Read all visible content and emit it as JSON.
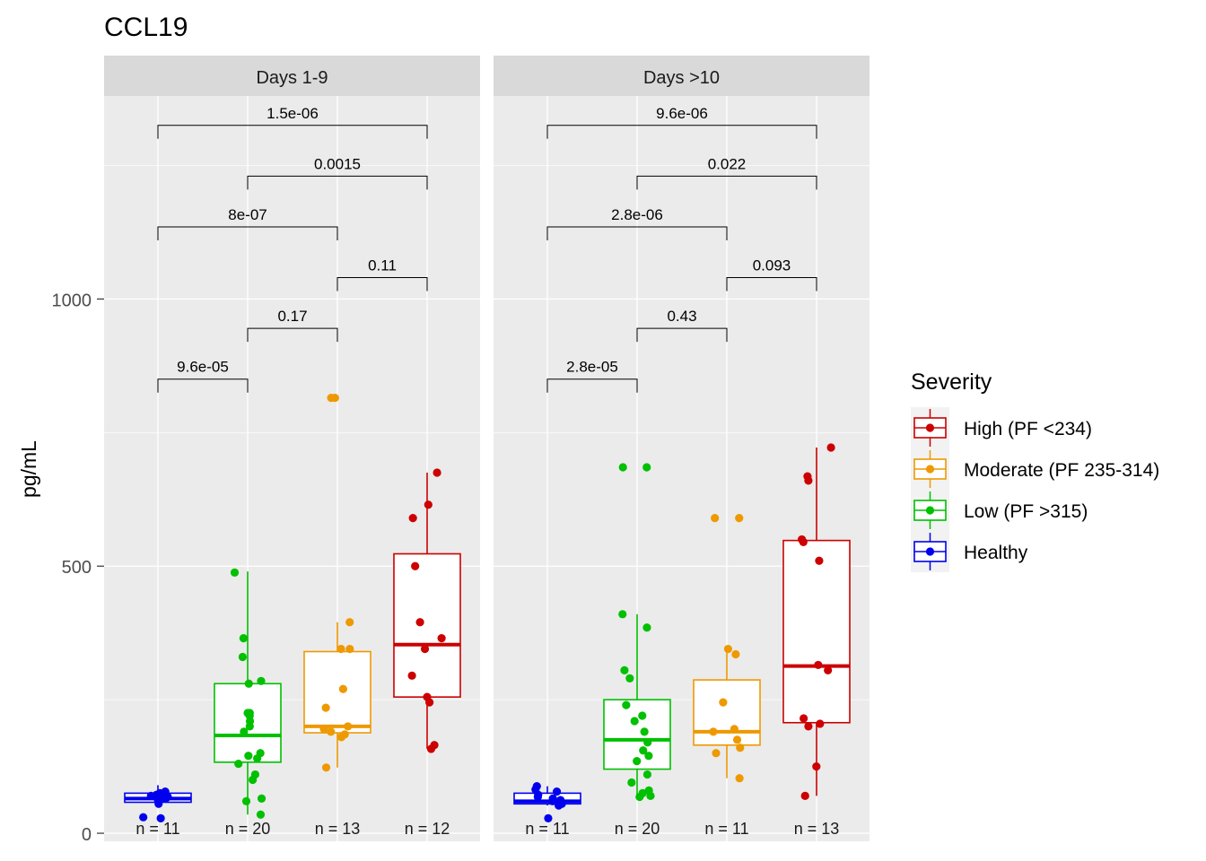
{
  "chart_data": {
    "type": "box",
    "title": "CCL19",
    "xlabel": "",
    "ylabel": "pg/mL",
    "ylim": [
      -15,
      1380
    ],
    "yticks": [
      0,
      500,
      1000
    ],
    "grid": true,
    "legend": {
      "title": "Severity",
      "position": "right",
      "entries": [
        {
          "name": "High (PF <234)",
          "color": "#CC0000"
        },
        {
          "name": "Moderate (PF 235-314)",
          "color": "#EE9900"
        },
        {
          "name": "Low (PF >315)",
          "color": "#00C000"
        },
        {
          "name": "Healthy",
          "color": "#0000EE"
        }
      ]
    },
    "panels": [
      {
        "label": "Days 1-9",
        "groups": [
          {
            "severity": "Healthy",
            "color": "#0000EE",
            "n_label": "n = 11",
            "box": {
              "q1": 58,
              "median": 65,
              "q3": 75,
              "whisker_low": 55,
              "whisker_high": 90
            },
            "points": [
              78,
              75,
              72,
              70,
              68,
              65,
              62,
              60,
              55,
              30,
              28
            ]
          },
          {
            "severity": "Low (PF >315)",
            "color": "#00C000",
            "n_label": "n = 20",
            "box": {
              "q1": 133,
              "median": 183,
              "q3": 280,
              "whisker_low": 35,
              "whisker_high": 490
            },
            "points": [
              488,
              365,
              330,
              285,
              280,
              225,
              220,
              210,
              200,
              190,
              150,
              140,
              130,
              110,
              100,
              65,
              60,
              35,
              225,
              145
            ]
          },
          {
            "severity": "Moderate (PF 235-314)",
            "color": "#EE9900",
            "n_label": "n = 13",
            "box": {
              "q1": 188,
              "median": 200,
              "q3": 340,
              "whisker_low": 123,
              "whisker_high": 395
            },
            "points": [
              815,
              815,
              395,
              345,
              345,
              270,
              235,
              200,
              195,
              190,
              185,
              180,
              123
            ]
          },
          {
            "severity": "High (PF <234)",
            "color": "#CC0000",
            "n_label": "n = 12",
            "box": {
              "q1": 255,
              "median": 353,
              "q3": 523,
              "whisker_low": 158,
              "whisker_high": 675
            },
            "points": [
              675,
              615,
              590,
              500,
              395,
              365,
              345,
              295,
              255,
              245,
              165,
              158
            ]
          }
        ],
        "comparisons": [
          {
            "from": 0,
            "to": 3,
            "label": "1.5e-06",
            "y": 1325
          },
          {
            "from": 1,
            "to": 3,
            "label": "0.0015",
            "y": 1230
          },
          {
            "from": 0,
            "to": 2,
            "label": "8e-07",
            "y": 1135
          },
          {
            "from": 2,
            "to": 3,
            "label": "0.11",
            "y": 1040
          },
          {
            "from": 1,
            "to": 2,
            "label": "0.17",
            "y": 945
          },
          {
            "from": 0,
            "to": 1,
            "label": "9.6e-05",
            "y": 850
          }
        ]
      },
      {
        "label": "Days >10",
        "groups": [
          {
            "severity": "Healthy",
            "color": "#0000EE",
            "n_label": "n = 11",
            "box": {
              "q1": 55,
              "median": 60,
              "q3": 75,
              "whisker_low": 52,
              "whisker_high": 88
            },
            "points": [
              88,
              82,
              78,
              72,
              68,
              65,
              62,
              60,
              55,
              52,
              28
            ]
          },
          {
            "severity": "Low (PF >315)",
            "color": "#00C000",
            "n_label": "n = 20",
            "box": {
              "q1": 120,
              "median": 175,
              "q3": 250,
              "whisker_low": 68,
              "whisker_high": 410
            },
            "points": [
              685,
              685,
              410,
              385,
              305,
              290,
              240,
              220,
              210,
              190,
              170,
              155,
              145,
              135,
              110,
              95,
              80,
              75,
              70,
              68
            ]
          },
          {
            "severity": "Moderate (PF 235-314)",
            "color": "#EE9900",
            "n_label": "n = 11",
            "box": {
              "q1": 165,
              "median": 190,
              "q3": 287,
              "whisker_low": 103,
              "whisker_high": 340
            },
            "points": [
              590,
              590,
              345,
              335,
              245,
              195,
              190,
              175,
              160,
              150,
              103
            ]
          },
          {
            "severity": "High (PF <234)",
            "color": "#CC0000",
            "n_label": "n = 13",
            "box": {
              "q1": 207,
              "median": 313,
              "q3": 548,
              "whisker_low": 70,
              "whisker_high": 722
            },
            "points": [
              722,
              668,
              660,
              550,
              545,
              510,
              305,
              315,
              215,
              205,
              200,
              125,
              70
            ]
          }
        ],
        "comparisons": [
          {
            "from": 0,
            "to": 3,
            "label": "9.6e-06",
            "y": 1325
          },
          {
            "from": 1,
            "to": 3,
            "label": "0.022",
            "y": 1230
          },
          {
            "from": 0,
            "to": 2,
            "label": "2.8e-06",
            "y": 1135
          },
          {
            "from": 2,
            "to": 3,
            "label": "0.093",
            "y": 1040
          },
          {
            "from": 1,
            "to": 2,
            "label": "0.43",
            "y": 945
          },
          {
            "from": 0,
            "to": 1,
            "label": "2.8e-05",
            "y": 850
          }
        ]
      }
    ]
  }
}
